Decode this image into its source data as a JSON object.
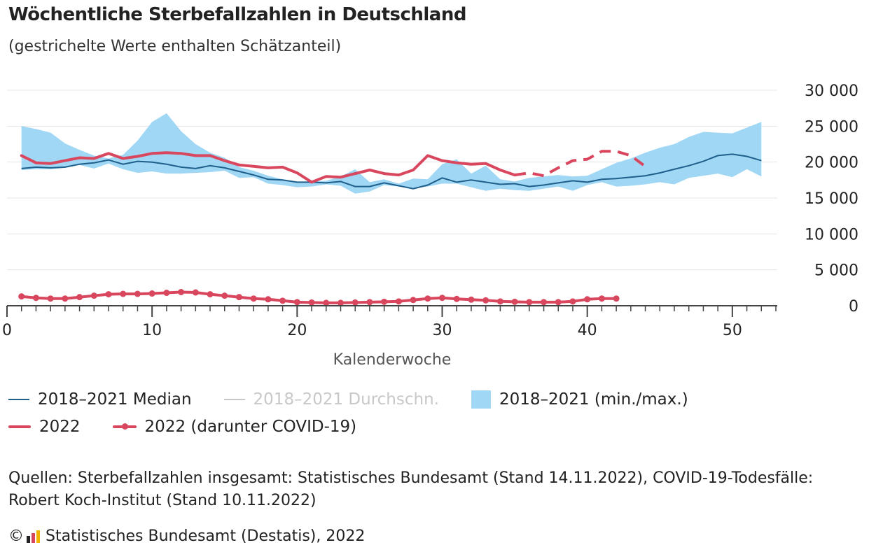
{
  "title": "Wöchentliche Sterbefallzahlen in Deutschland",
  "subtitle": "(gestrichelte Werte enthalten Schätzanteil)",
  "colors": {
    "median": "#1f5f8b",
    "average": "#c8c8c8",
    "range": "#9fd7f5",
    "y2022": "#d9475e",
    "covid": "#d9475e",
    "grid": "#e4e4e4",
    "axis": "#444444"
  },
  "legend": {
    "median": "2018–2021 Median",
    "average": "2018–2021 Durchschn.",
    "range": "2018–2021 (min./max.)",
    "y2022": "2022",
    "covid": "2022 (darunter COVID-19)"
  },
  "sources": "Quellen: Sterbefallzahlen insgesamt: Statistisches Bundesamt (Stand 14.11.2022), COVID-19-Todesfälle: Robert Koch-Institut (Stand 10.11.2022)",
  "copyright_symbol": "©",
  "copyright": "Statistisches Bundesamt (Destatis), 2022",
  "logo_icon": "destatis-logo-icon",
  "chart_data": {
    "type": "line",
    "xlabel": "Kalenderwoche",
    "ylabel": "",
    "xlim": [
      0,
      53
    ],
    "ylim": [
      0,
      30000
    ],
    "x_ticks": [
      0,
      10,
      20,
      30,
      40,
      50
    ],
    "y_ticks": [
      0,
      5000,
      10000,
      15000,
      20000,
      25000,
      30000
    ],
    "y_tick_labels": [
      "0",
      "5 000",
      "10 000",
      "15 000",
      "20 000",
      "25 000",
      "30 000"
    ],
    "y_axis_position": "right",
    "grid": true,
    "weeks": [
      1,
      2,
      3,
      4,
      5,
      6,
      7,
      8,
      9,
      10,
      11,
      12,
      13,
      14,
      15,
      16,
      17,
      18,
      19,
      20,
      21,
      22,
      23,
      24,
      25,
      26,
      27,
      28,
      29,
      30,
      31,
      32,
      33,
      34,
      35,
      36,
      37,
      38,
      39,
      40,
      41,
      42,
      43,
      44,
      45,
      46,
      47,
      48,
      49,
      50,
      51,
      52
    ],
    "series": [
      {
        "name": "2018–2021 (min./max.)",
        "type": "area",
        "min": [
          18900,
          19000,
          19000,
          19200,
          19600,
          19100,
          19800,
          19000,
          18500,
          18700,
          18400,
          18400,
          18500,
          18600,
          18800,
          17800,
          17900,
          17000,
          16800,
          16500,
          16600,
          16900,
          16700,
          15600,
          15900,
          16800,
          16600,
          16400,
          16600,
          17000,
          17000,
          16500,
          16000,
          16300,
          16100,
          16000,
          16300,
          16600,
          16000,
          16800,
          17200,
          16600,
          16700,
          16900,
          17200,
          16900,
          17800,
          18100,
          18400,
          17900,
          19000,
          18000
        ],
        "max": [
          25000,
          24600,
          24100,
          22600,
          21700,
          20900,
          20500,
          21000,
          23000,
          25600,
          26800,
          24300,
          22500,
          21300,
          20600,
          19300,
          18800,
          18100,
          17600,
          17100,
          17300,
          17400,
          18000,
          19000,
          17200,
          17600,
          17000,
          17700,
          17600,
          19700,
          20400,
          18400,
          19500,
          17600,
          17300,
          17800,
          18000,
          18200,
          18000,
          18100,
          19000,
          19900,
          20500,
          21300,
          22000,
          22500,
          23500,
          24200,
          24100,
          24000,
          24800,
          25600
        ]
      },
      {
        "name": "2018–2021 Median",
        "type": "line",
        "values": [
          19100,
          19300,
          19200,
          19300,
          19700,
          19900,
          20300,
          19700,
          20100,
          20000,
          19700,
          19300,
          19100,
          19500,
          19200,
          18700,
          18200,
          17600,
          17500,
          17200,
          17200,
          17100,
          17300,
          16600,
          16600,
          17100,
          16700,
          16300,
          16800,
          17800,
          17200,
          17500,
          17200,
          16900,
          17000,
          16600,
          16800,
          17100,
          17400,
          17200,
          17600,
          17700,
          17900,
          18100,
          18500,
          19000,
          19500,
          20100,
          20900,
          21100,
          20800,
          20200
        ]
      },
      {
        "name": "2022",
        "type": "line",
        "values": [
          20900,
          19900,
          19800,
          20200,
          20600,
          20500,
          21200,
          20500,
          20800,
          21200,
          21300,
          21200,
          20900,
          20900,
          20200,
          19600,
          19400,
          19200,
          19300,
          18500,
          17200,
          18000,
          17900,
          18400,
          18900,
          18400,
          18200,
          18900,
          20900,
          20200,
          19900,
          19700,
          19800,
          18900,
          18200,
          18500,
          18100,
          19200,
          20200,
          20400,
          21500,
          21500,
          20900,
          19400
        ],
        "estimated_from_week": 35
      },
      {
        "name": "2022 (darunter COVID-19)",
        "type": "line_markers",
        "values": [
          1300,
          1100,
          1000,
          1000,
          1200,
          1400,
          1600,
          1650,
          1650,
          1700,
          1800,
          1900,
          1850,
          1600,
          1400,
          1200,
          1000,
          900,
          700,
          500,
          450,
          400,
          400,
          450,
          500,
          550,
          600,
          800,
          1000,
          1100,
          950,
          850,
          750,
          600,
          550,
          500,
          500,
          500,
          600,
          900,
          1000,
          1000
        ]
      }
    ]
  }
}
